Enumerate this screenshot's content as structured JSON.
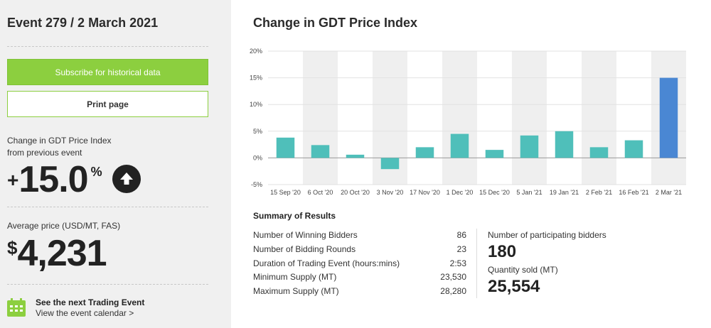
{
  "sidebar": {
    "event_title": "Event 279 / 2 March 2021",
    "subscribe_label": "Subscribe for historical data",
    "print_label": "Print page",
    "change_label_1": "Change in GDT Price Index",
    "change_label_2": "from previous event",
    "change_sign": "+",
    "change_value": "15.0",
    "change_unit": "%",
    "change_direction_icon": "up-arrow-icon",
    "price_label": "Average price (USD/MT, FAS)",
    "price_currency": "$",
    "price_value": "4,231",
    "next_event_title": "See the next Trading Event",
    "next_event_link": "View the event calendar >",
    "accent_color": "#8ccf3f"
  },
  "main": {
    "chart_title": "Change in GDT Price Index"
  },
  "chart_data": {
    "type": "bar",
    "title": "Change in GDT Price Index",
    "categories": [
      "15 Sep '20",
      "6 Oct '20",
      "20 Oct '20",
      "3 Nov '20",
      "17 Nov '20",
      "1 Dec '20",
      "15 Dec '20",
      "5 Jan '21",
      "19 Jan '21",
      "2 Feb '21",
      "16 Feb '21",
      "2 Mar '21"
    ],
    "values": [
      3.8,
      2.4,
      0.6,
      -2.1,
      2.0,
      4.5,
      1.5,
      4.2,
      5.0,
      2.0,
      3.3,
      15.0
    ],
    "ylim": [
      -5,
      20
    ],
    "yticks": [
      -5,
      0,
      5,
      10,
      15,
      20
    ],
    "ytick_labels": [
      "-5%",
      "0%",
      "5%",
      "10%",
      "15%",
      "20%"
    ],
    "bar_color": "#4fbfba",
    "highlight_color": "#4a87d3",
    "highlight_index": 11,
    "grid": true
  },
  "summary": {
    "title": "Summary of Results",
    "rows": [
      {
        "label": "Number of Winning Bidders",
        "value": "86"
      },
      {
        "label": "Number of Bidding Rounds",
        "value": "23"
      },
      {
        "label": "Duration of Trading Event (hours:mins)",
        "value": "2:53"
      },
      {
        "label": "Minimum Supply (MT)",
        "value": "23,530"
      },
      {
        "label": "Maximum Supply (MT)",
        "value": "28,280"
      }
    ],
    "participants_label": "Number of participating bidders",
    "participants_value": "180",
    "quantity_label": "Quantity sold (MT)",
    "quantity_value": "25,554"
  }
}
